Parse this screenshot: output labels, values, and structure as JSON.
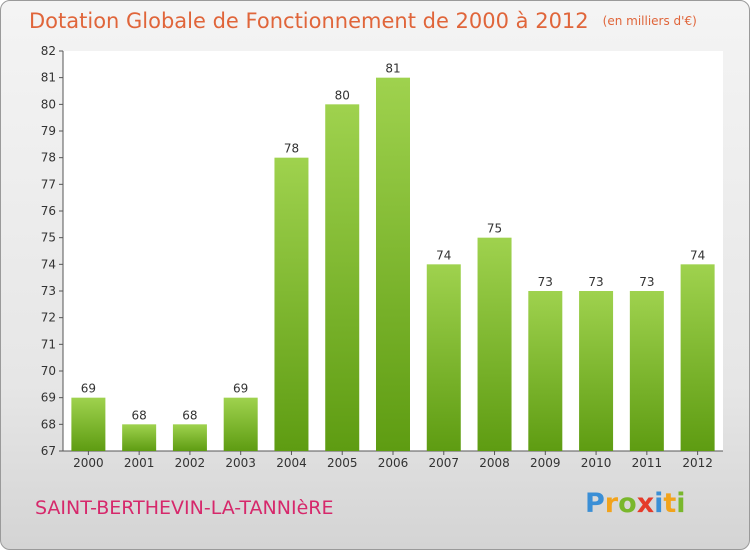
{
  "chart_data": {
    "type": "bar",
    "title": "Dotation Globale de Fonctionnement de 2000 à 2012",
    "unit_label": "(en milliers d'€)",
    "categories": [
      "2000",
      "2001",
      "2002",
      "2003",
      "2004",
      "2005",
      "2006",
      "2007",
      "2008",
      "2009",
      "2010",
      "2011",
      "2012"
    ],
    "values": [
      69,
      68,
      68,
      69,
      78,
      80,
      81,
      74,
      75,
      73,
      73,
      73,
      74
    ],
    "data_labels": [
      "69",
      "68",
      "68",
      "69",
      "78",
      "80",
      "81",
      "74",
      "75",
      "73",
      "73",
      "73",
      "74"
    ],
    "yticks": [
      "67",
      "68",
      "69",
      "70",
      "71",
      "72",
      "73",
      "74",
      "75",
      "76",
      "77",
      "78",
      "79",
      "80",
      "81",
      "82"
    ],
    "ylim": [
      67,
      82
    ],
    "xlabel": "",
    "ylabel": "",
    "grid": false,
    "bar_color_top": "#9fd24e",
    "bar_color_bottom": "#5e9c12"
  },
  "footer": {
    "commune": "SAINT-BERTHEVIN-LA-TANNIèRE"
  },
  "logo": {
    "letters": [
      "P",
      "r",
      "o",
      "x",
      "i",
      "t",
      "i"
    ],
    "colors": [
      "#3b8fd6",
      "#f2a31b",
      "#79b72c",
      "#e53b2a",
      "#3b8fd6",
      "#f2a31b",
      "#79b72c"
    ]
  }
}
